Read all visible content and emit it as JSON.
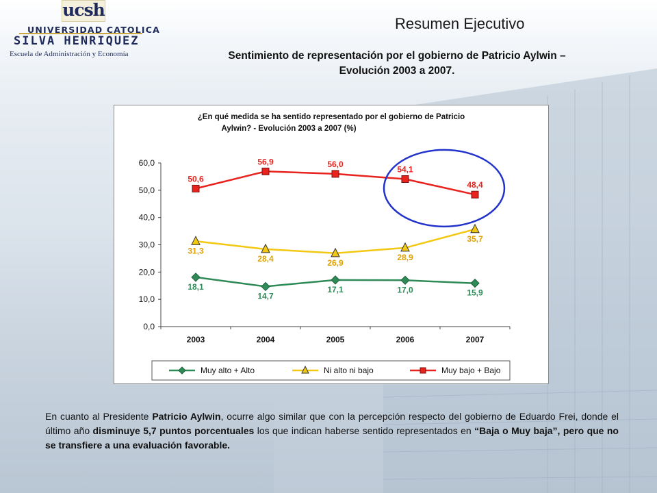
{
  "logo": {
    "ucsh": "ucsh",
    "university": "UNIVERSIDAD CATOLICA",
    "name": "SILVA HENRIQUEZ",
    "school": "Escuela de Administración y Economía"
  },
  "header": {
    "title": "Resumen Ejecutivo",
    "subtitle_line1": "Sentimiento de representación por el gobierno de Patricio Aylwin –",
    "subtitle_line2": "Evolución 2003 a 2007."
  },
  "chart_data": {
    "type": "line",
    "title_line1": "¿En qué medida se ha sentido representado por el gobierno de Patricio",
    "title_line2": "Aylwin?  - Evolución 2003 a 2007 (%)",
    "categories": [
      "2003",
      "2004",
      "2005",
      "2006",
      "2007"
    ],
    "ylim": [
      0,
      60
    ],
    "yticks": [
      "0,0",
      "10,0",
      "20,0",
      "30,0",
      "40,0",
      "50,0",
      "60,0"
    ],
    "series": [
      {
        "name": "Muy alto + Alto",
        "color": "#2e8b57",
        "marker": "diamond",
        "values": [
          18.1,
          14.7,
          17.1,
          17.0,
          15.9
        ],
        "labels": [
          "18,1",
          "14,7",
          "17,1",
          "17,0",
          "15,9"
        ]
      },
      {
        "name": "Ni alto ni bajo",
        "color": "#f2c811",
        "marker": "triangle",
        "values": [
          31.3,
          28.4,
          26.9,
          28.9,
          35.7
        ],
        "labels": [
          "31,3",
          "28,4",
          "26,9",
          "28,9",
          "35,7"
        ]
      },
      {
        "name": "Muy bajo + Bajo",
        "color": "#e8231e",
        "marker": "square",
        "values": [
          50.6,
          56.9,
          56.0,
          54.1,
          48.4
        ],
        "labels": [
          "50,6",
          "56,9",
          "56,0",
          "54,1",
          "48,4"
        ]
      }
    ],
    "label_colors": {
      "green": "#2e8b57",
      "yellow": "#e0a100",
      "red": "#e8231e"
    },
    "grid": false,
    "legend_position": "bottom",
    "annotation": "blue-ellipse-around-2006-2007"
  },
  "body": {
    "p1": "En cuanto al Presidente ",
    "p2": "Patricio Aylwin",
    "p3": ", ocurre algo similar que con la percepción respecto del gobierno de Eduardo Frei, donde el último año ",
    "p4": "disminuye 5,7 puntos porcentuales",
    "p5": " los que indican haberse sentido representados  en ",
    "p6": "“Baja o Muy baja”, pero que no se transfiere a una evaluación favorable."
  }
}
